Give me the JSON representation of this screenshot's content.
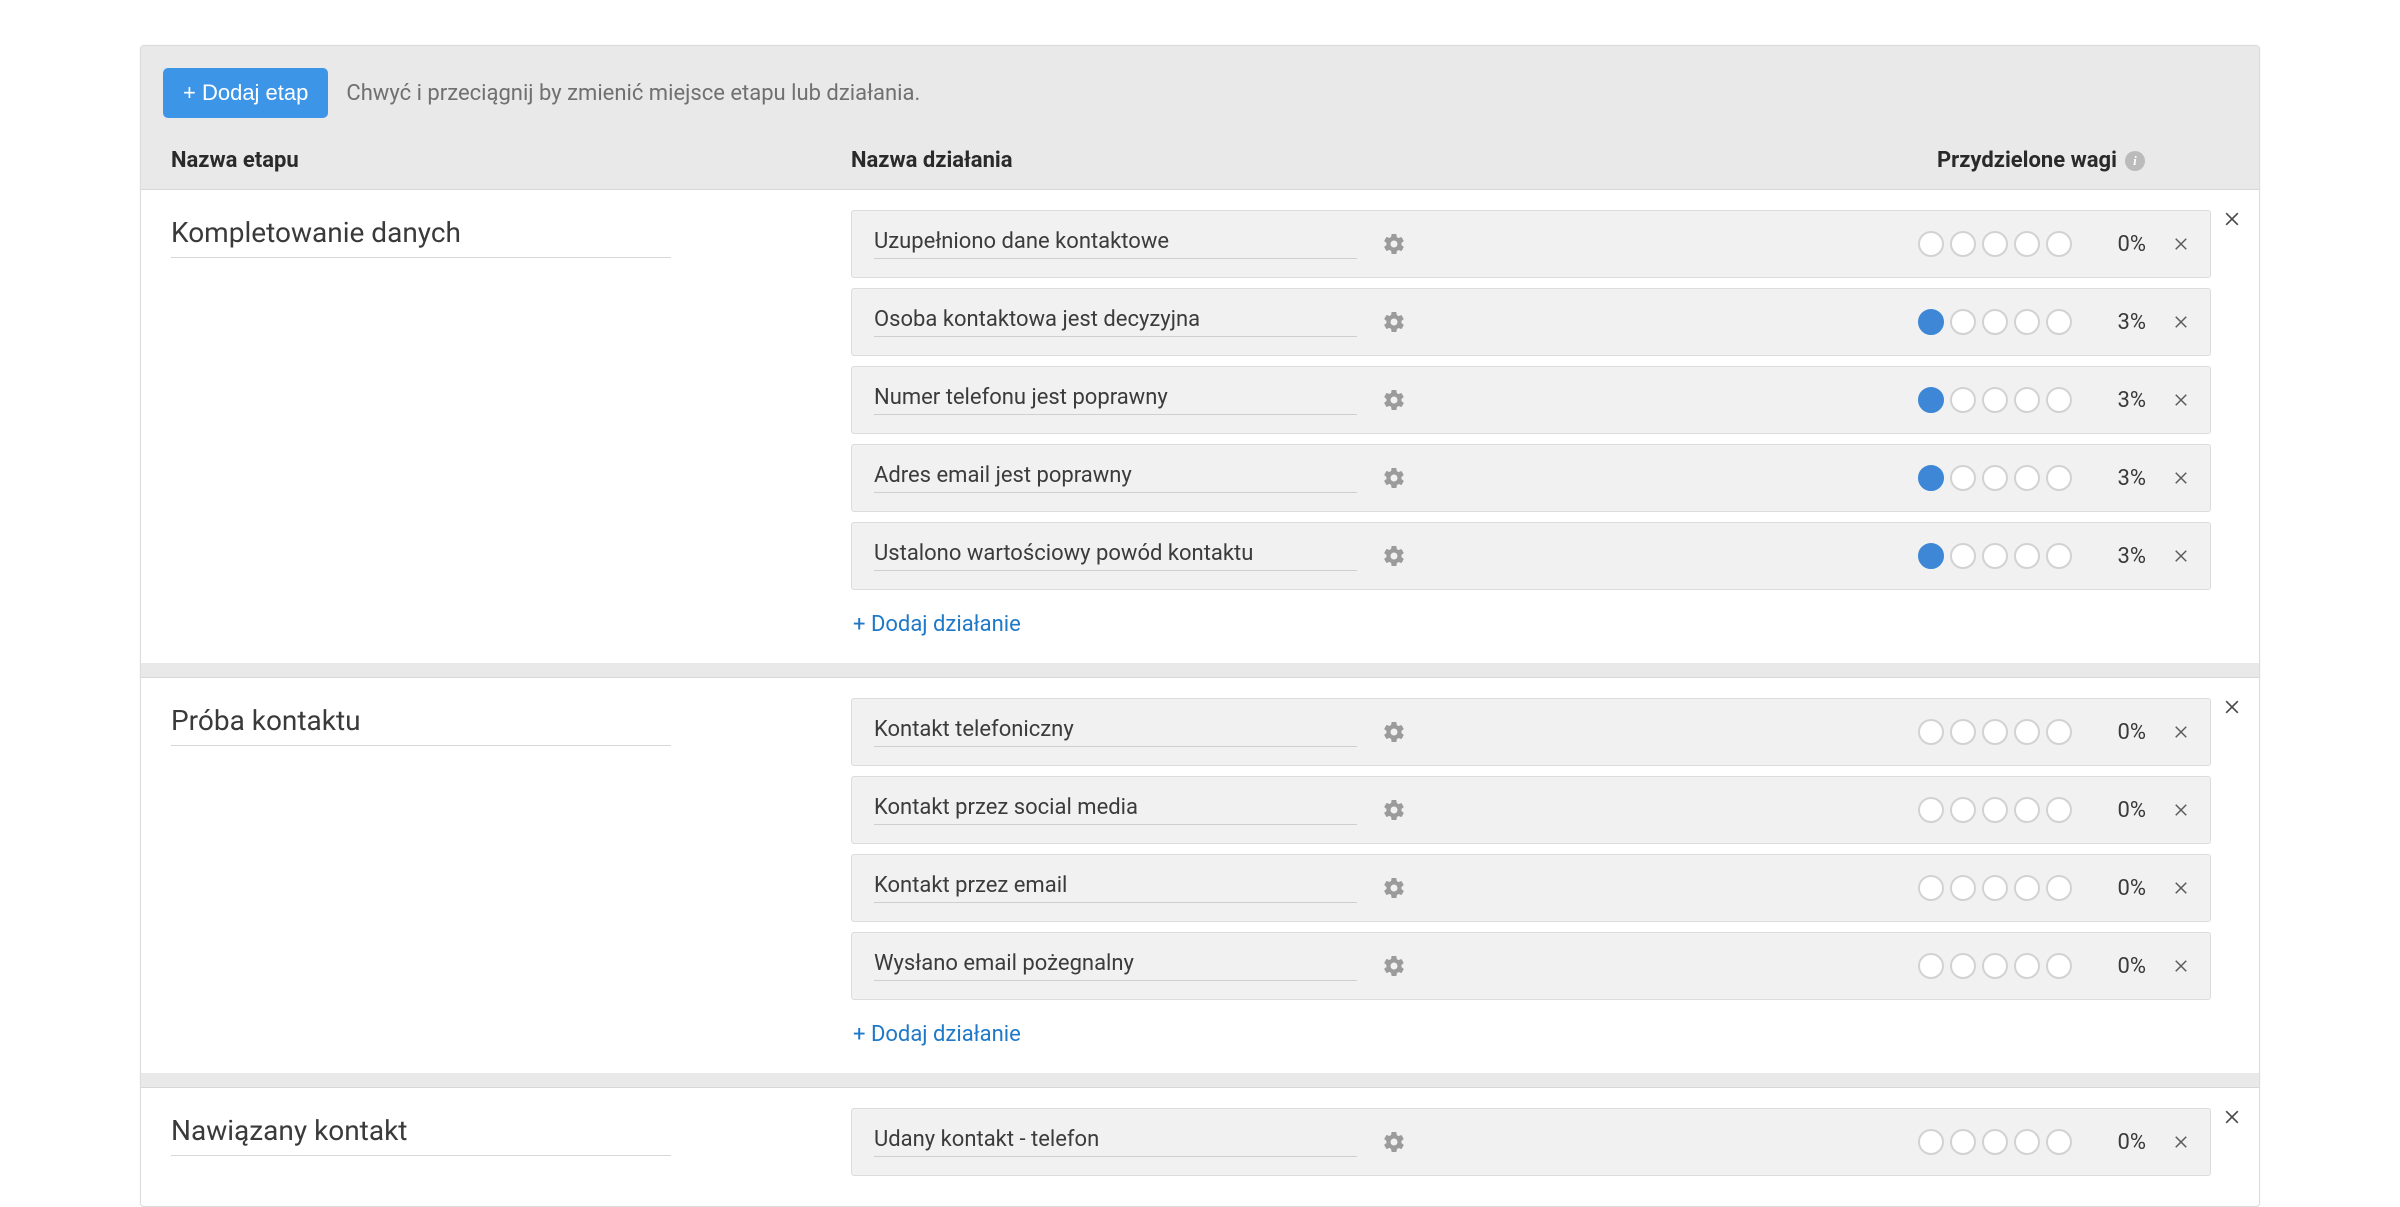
{
  "header": {
    "add_stage_label": "+ Dodaj etap",
    "hint": "Chwyć i przeciągnij by zmienić miejsce etapu lub działania."
  },
  "columns": {
    "stage_name": "Nazwa etapu",
    "action_name": "Nazwa działania",
    "weights": "Przydzielone wagi"
  },
  "add_action_label": "+ Dodaj działanie",
  "colors": {
    "primary_button": "#3d95e8",
    "dot_filled": "#3d87d6",
    "panel_bg": "#e9e9e9",
    "row_bg": "#f1f1f1"
  },
  "stages": [
    {
      "name": "Kompletowanie danych",
      "actions": [
        {
          "name": "Uzupełniono dane kontaktowe",
          "weight_level": 0,
          "pct": "0%"
        },
        {
          "name": "Osoba kontaktowa jest decyzyjna",
          "weight_level": 1,
          "pct": "3%"
        },
        {
          "name": "Numer telefonu jest poprawny",
          "weight_level": 1,
          "pct": "3%"
        },
        {
          "name": "Adres email jest poprawny",
          "weight_level": 1,
          "pct": "3%"
        },
        {
          "name": "Ustalono wartościowy powód kontaktu",
          "weight_level": 1,
          "pct": "3%"
        }
      ]
    },
    {
      "name": "Próba kontaktu",
      "actions": [
        {
          "name": "Kontakt telefoniczny",
          "weight_level": 0,
          "pct": "0%"
        },
        {
          "name": "Kontakt przez social media",
          "weight_level": 0,
          "pct": "0%"
        },
        {
          "name": "Kontakt przez email",
          "weight_level": 0,
          "pct": "0%"
        },
        {
          "name": "Wysłano email pożegnalny",
          "weight_level": 0,
          "pct": "0%"
        }
      ]
    },
    {
      "name": "Nawiązany kontakt",
      "actions": [
        {
          "name": "Udany kontakt - telefon",
          "weight_level": 0,
          "pct": "0%"
        }
      ]
    }
  ]
}
